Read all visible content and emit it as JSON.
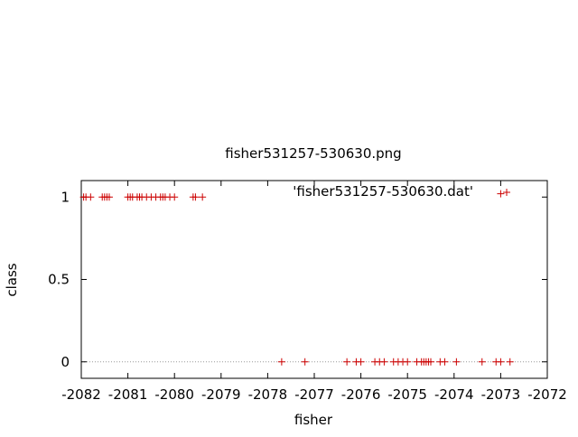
{
  "chart_data": {
    "type": "scatter",
    "title": "fisher531257-530630.png",
    "xlabel": "fisher",
    "ylabel": "class",
    "xlim": [
      -2082,
      -2072
    ],
    "ylim": [
      -0.1,
      1.1
    ],
    "x_ticks": [
      -2082,
      -2081,
      -2080,
      -2079,
      -2078,
      -2077,
      -2076,
      -2075,
      -2074,
      -2073,
      -2072
    ],
    "x_tick_labels": [
      "-2082",
      "-2081",
      "-2080",
      "-2079",
      "-2078",
      "-2077",
      "-2076",
      "-2075",
      "-2074",
      "-2073",
      "-2072"
    ],
    "y_ticks": [
      0,
      0.5,
      1
    ],
    "y_tick_labels": [
      "0",
      "0.5",
      "1"
    ],
    "zero_line": true,
    "legend": {
      "position": "top-right",
      "entries": [
        "'fisher531257-530630.dat'"
      ]
    },
    "series": [
      {
        "name": "'fisher531257-530630.dat'",
        "color": "#cc0000",
        "marker": "plus",
        "points": [
          {
            "x": -2081.95,
            "y": 1
          },
          {
            "x": -2081.9,
            "y": 1
          },
          {
            "x": -2081.8,
            "y": 1
          },
          {
            "x": -2081.55,
            "y": 1
          },
          {
            "x": -2081.5,
            "y": 1
          },
          {
            "x": -2081.45,
            "y": 1
          },
          {
            "x": -2081.4,
            "y": 1
          },
          {
            "x": -2081.0,
            "y": 1
          },
          {
            "x": -2080.95,
            "y": 1
          },
          {
            "x": -2080.9,
            "y": 1
          },
          {
            "x": -2080.8,
            "y": 1
          },
          {
            "x": -2080.75,
            "y": 1
          },
          {
            "x": -2080.7,
            "y": 1
          },
          {
            "x": -2080.6,
            "y": 1
          },
          {
            "x": -2080.5,
            "y": 1
          },
          {
            "x": -2080.4,
            "y": 1
          },
          {
            "x": -2080.3,
            "y": 1
          },
          {
            "x": -2080.25,
            "y": 1
          },
          {
            "x": -2080.2,
            "y": 1
          },
          {
            "x": -2080.1,
            "y": 1
          },
          {
            "x": -2080.0,
            "y": 1
          },
          {
            "x": -2079.6,
            "y": 1
          },
          {
            "x": -2079.55,
            "y": 1
          },
          {
            "x": -2079.4,
            "y": 1
          },
          {
            "x": -2073.0,
            "y": 1.02
          },
          {
            "x": -2077.7,
            "y": 0
          },
          {
            "x": -2077.2,
            "y": 0
          },
          {
            "x": -2076.3,
            "y": 0
          },
          {
            "x": -2076.1,
            "y": 0
          },
          {
            "x": -2076.0,
            "y": 0
          },
          {
            "x": -2075.7,
            "y": 0
          },
          {
            "x": -2075.6,
            "y": 0
          },
          {
            "x": -2075.5,
            "y": 0
          },
          {
            "x": -2075.3,
            "y": 0
          },
          {
            "x": -2075.2,
            "y": 0
          },
          {
            "x": -2075.1,
            "y": 0
          },
          {
            "x": -2075.0,
            "y": 0
          },
          {
            "x": -2074.8,
            "y": 0
          },
          {
            "x": -2074.7,
            "y": 0
          },
          {
            "x": -2074.65,
            "y": 0
          },
          {
            "x": -2074.6,
            "y": 0
          },
          {
            "x": -2074.55,
            "y": 0
          },
          {
            "x": -2074.5,
            "y": 0
          },
          {
            "x": -2074.3,
            "y": 0
          },
          {
            "x": -2074.2,
            "y": 0
          },
          {
            "x": -2073.95,
            "y": 0
          },
          {
            "x": -2073.4,
            "y": 0
          },
          {
            "x": -2073.1,
            "y": 0
          },
          {
            "x": -2073.0,
            "y": 0
          },
          {
            "x": -2072.8,
            "y": 0
          }
        ]
      }
    ]
  }
}
